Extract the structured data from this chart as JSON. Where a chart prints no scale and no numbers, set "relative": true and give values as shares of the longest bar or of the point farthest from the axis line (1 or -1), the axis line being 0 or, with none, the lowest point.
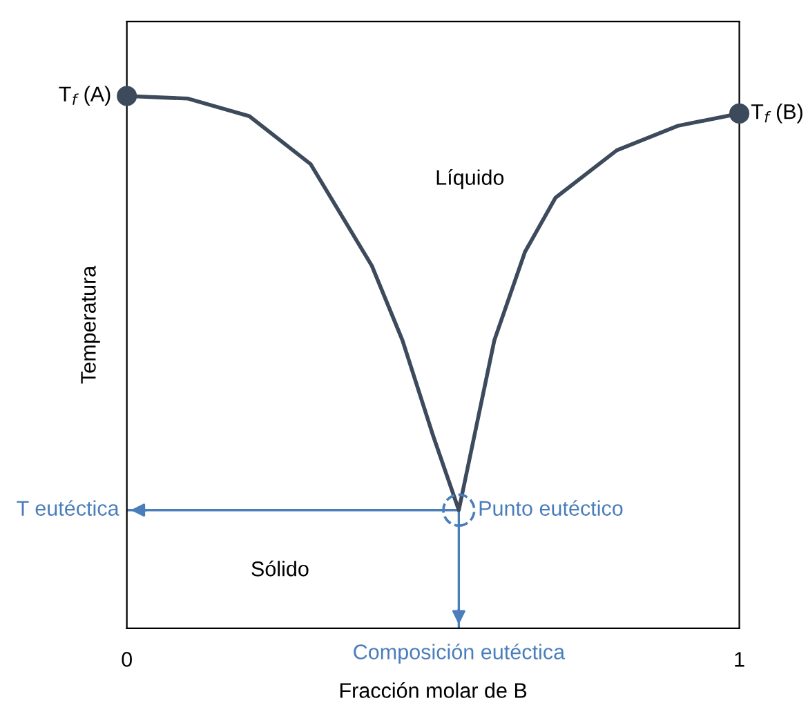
{
  "chart_data": {
    "type": "line",
    "relative": true,
    "xlabel": "Fracción molar de B",
    "ylabel": "Temperatura",
    "xlim": [
      0,
      1
    ],
    "xticks": [
      0,
      1
    ],
    "tick_labels": "x",
    "grid": false,
    "series": [
      {
        "color": "#3d4a5c",
        "marker": "none",
        "x": [
          0,
          0.1,
          0.2,
          0.3,
          0.4,
          0.45,
          0.5,
          0.542,
          0.6,
          0.65,
          0.7,
          0.8,
          0.9,
          1
        ],
        "values": [
          1,
          0.995,
          0.962,
          0.872,
          0.681,
          0.541,
          0.362,
          0.222,
          0.541,
          0.707,
          0.809,
          0.898,
          0.944,
          0.967
        ]
      },
      {
        "type": "scatter",
        "color": "#3d4a5c",
        "marker": "circle",
        "x": [
          0,
          1
        ],
        "values": [
          1,
          0.967
        ]
      },
      {
        "type": "scatter",
        "color": "#4a7ebb",
        "marker": "circle",
        "line_style": "dashed",
        "x": [
          0.542
        ],
        "values": [
          0.222
        ]
      }
    ],
    "ref_lines": [
      {
        "axis": "y",
        "value": 0.222,
        "label": "T eutéctica",
        "color": "#4a7ebb"
      },
      {
        "axis": "x",
        "value": 0.542,
        "label": "Composición eutéctica",
        "color": "#4a7ebb"
      }
    ],
    "annotations": [
      {
        "text": "T$_{f}$ (A)",
        "x": 0,
        "y": 1
      },
      {
        "text": "T$_{f}$ (B)",
        "x": 1,
        "y": 0.967
      },
      {
        "text": "Punto eutéctico",
        "x": 0.542,
        "y": 0.222
      },
      "Líquido",
      "Sólido"
    ]
  }
}
